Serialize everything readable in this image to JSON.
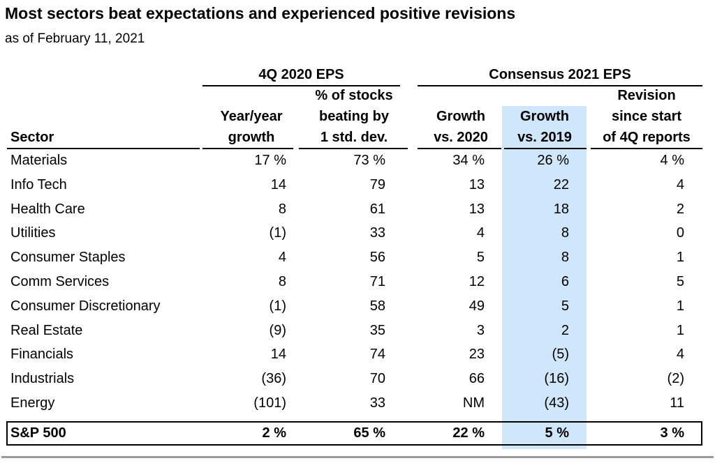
{
  "title": "Most sectors beat expectations and experienced positive revisions",
  "subtitle": "as of February 11, 2021",
  "colors": {
    "highlight_column": "#cfe6fb",
    "rule": "#9a9a9a"
  },
  "chart_data": {
    "type": "table",
    "title": "Most sectors beat expectations and experienced positive revisions",
    "subtitle": "as of February 11, 2021",
    "column_groups": [
      {
        "label": "4Q 2020 EPS",
        "columns": [
          "yoy",
          "beat"
        ]
      },
      {
        "label": "Consensus 2021 EPS",
        "columns": [
          "g2020",
          "g2019",
          "rev"
        ]
      }
    ],
    "headers": {
      "sector": "Sector",
      "yoy": [
        "Year/year",
        "growth"
      ],
      "beat": [
        "% of stocks",
        "beating by",
        "1 std. dev."
      ],
      "g2020": [
        "Growth",
        "vs. 2020"
      ],
      "g2019": [
        "Growth",
        "vs. 2019"
      ],
      "rev": [
        "Revision",
        "since start",
        "of 4Q reports"
      ]
    },
    "highlighted_column": "g2019",
    "rows": [
      {
        "sector": "Materials",
        "yoy": "17 %",
        "beat": "73 %",
        "g2020": "34 %",
        "g2019": "26 %",
        "rev": "4 %"
      },
      {
        "sector": "Info Tech",
        "yoy": "14",
        "beat": "79",
        "g2020": "13",
        "g2019": "22",
        "rev": "4"
      },
      {
        "sector": "Health Care",
        "yoy": "8",
        "beat": "61",
        "g2020": "13",
        "g2019": "18",
        "rev": "2"
      },
      {
        "sector": "Utilities",
        "yoy": "(1)",
        "beat": "33",
        "g2020": "4",
        "g2019": "8",
        "rev": "0"
      },
      {
        "sector": "Consumer Staples",
        "yoy": "4",
        "beat": "56",
        "g2020": "5",
        "g2019": "8",
        "rev": "1"
      },
      {
        "sector": "Comm Services",
        "yoy": "8",
        "beat": "71",
        "g2020": "12",
        "g2019": "6",
        "rev": "5"
      },
      {
        "sector": "Consumer Discretionary",
        "yoy": "(1)",
        "beat": "58",
        "g2020": "49",
        "g2019": "5",
        "rev": "1"
      },
      {
        "sector": "Real Estate",
        "yoy": "(9)",
        "beat": "35",
        "g2020": "3",
        "g2019": "2",
        "rev": "1"
      },
      {
        "sector": "Financials",
        "yoy": "14",
        "beat": "74",
        "g2020": "23",
        "g2019": "(5)",
        "rev": "4"
      },
      {
        "sector": "Industrials",
        "yoy": "(36)",
        "beat": "70",
        "g2020": "66",
        "g2019": "(16)",
        "rev": "(2)"
      },
      {
        "sector": "Energy",
        "yoy": "(101)",
        "beat": "33",
        "g2020": "NM",
        "g2019": "(43)",
        "rev": "11"
      }
    ],
    "total": {
      "sector": "S&P 500",
      "yoy": "2 %",
      "beat": "65 %",
      "g2020": "22 %",
      "g2019": "5 %",
      "rev": "3 %"
    }
  }
}
